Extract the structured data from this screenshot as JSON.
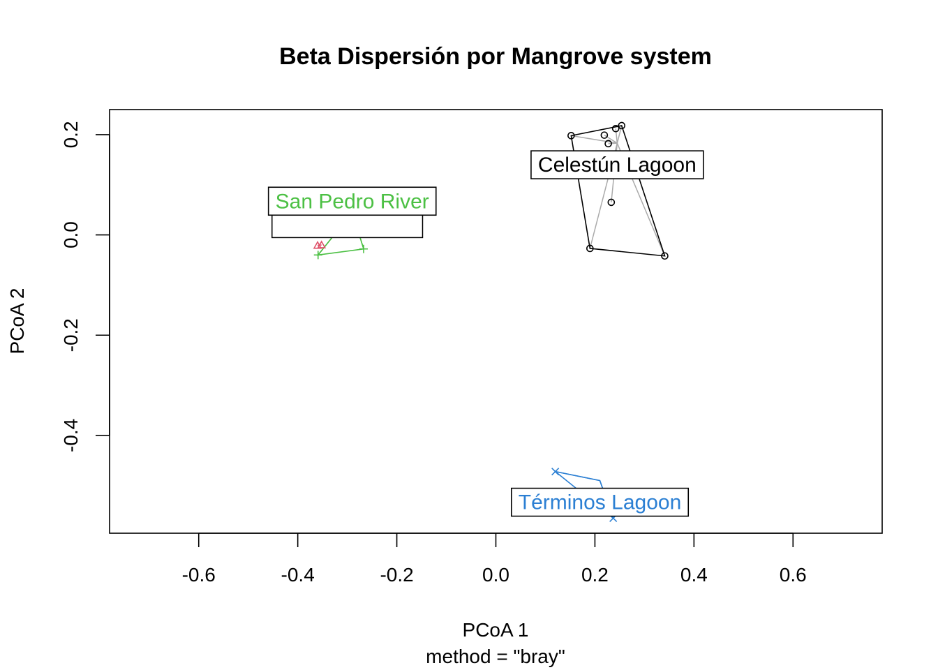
{
  "chart_data": {
    "type": "scatter",
    "title": "Beta Dispersión por Mangrove system",
    "xlabel": "PCoA 1",
    "subtitle": "method = \"bray\"",
    "ylabel": "PCoA 2",
    "xlim": [
      -0.78,
      0.78
    ],
    "ylim": [
      -0.595,
      0.25
    ],
    "xticks": [
      -0.6,
      -0.4,
      -0.2,
      0.0,
      0.2,
      0.4,
      0.6
    ],
    "xtick_labels": [
      "-0.6",
      "-0.4",
      "-0.2",
      "0.0",
      "0.2",
      "0.4",
      "0.6"
    ],
    "yticks": [
      -0.4,
      -0.2,
      0.0,
      0.2
    ],
    "ytick_labels": [
      "-0.4",
      "-0.2",
      "0.0",
      "0.2"
    ],
    "grid": false,
    "groups": [
      {
        "name": "Celestún Lagoon",
        "color": "#000000",
        "marker": "circle",
        "centroid": [
          0.245,
          0.183
        ],
        "points": [
          [
            0.152,
            0.198
          ],
          [
            0.219,
            0.199
          ],
          [
            0.242,
            0.212
          ],
          [
            0.254,
            0.218
          ],
          [
            0.227,
            0.182
          ],
          [
            0.233,
            0.065
          ],
          [
            0.19,
            -0.027
          ],
          [
            0.341,
            -0.042
          ]
        ],
        "hull": [
          [
            0.152,
            0.198
          ],
          [
            0.254,
            0.218
          ],
          [
            0.341,
            -0.042
          ],
          [
            0.19,
            -0.027
          ]
        ]
      },
      {
        "name": "San Pedro River",
        "color": "#4cc044",
        "marker": "plus",
        "centroid": [
          -0.29,
          0.045
        ],
        "points": [
          [
            -0.29,
            0.045
          ],
          [
            -0.267,
            -0.028
          ],
          [
            -0.359,
            -0.04
          ]
        ],
        "hull": [
          [
            -0.359,
            -0.04
          ],
          [
            -0.267,
            -0.028
          ],
          [
            -0.29,
            0.045
          ]
        ]
      },
      {
        "name": "Términos Lagoon",
        "color": "#2b7fd3",
        "marker": "x",
        "centroid": [
          0.21,
          -0.49
        ],
        "points": [
          [
            0.12,
            -0.472
          ],
          [
            0.237,
            -0.565
          ]
        ],
        "hull": [
          [
            0.12,
            -0.472
          ],
          [
            0.237,
            -0.565
          ],
          [
            0.21,
            -0.49
          ]
        ]
      },
      {
        "name": "",
        "color": "#df536b",
        "marker": "triangle",
        "centroid": [
          -0.352,
          -0.02
        ],
        "points": [
          [
            -0.352,
            -0.02
          ],
          [
            -0.36,
            -0.021
          ]
        ],
        "hull": []
      }
    ]
  }
}
